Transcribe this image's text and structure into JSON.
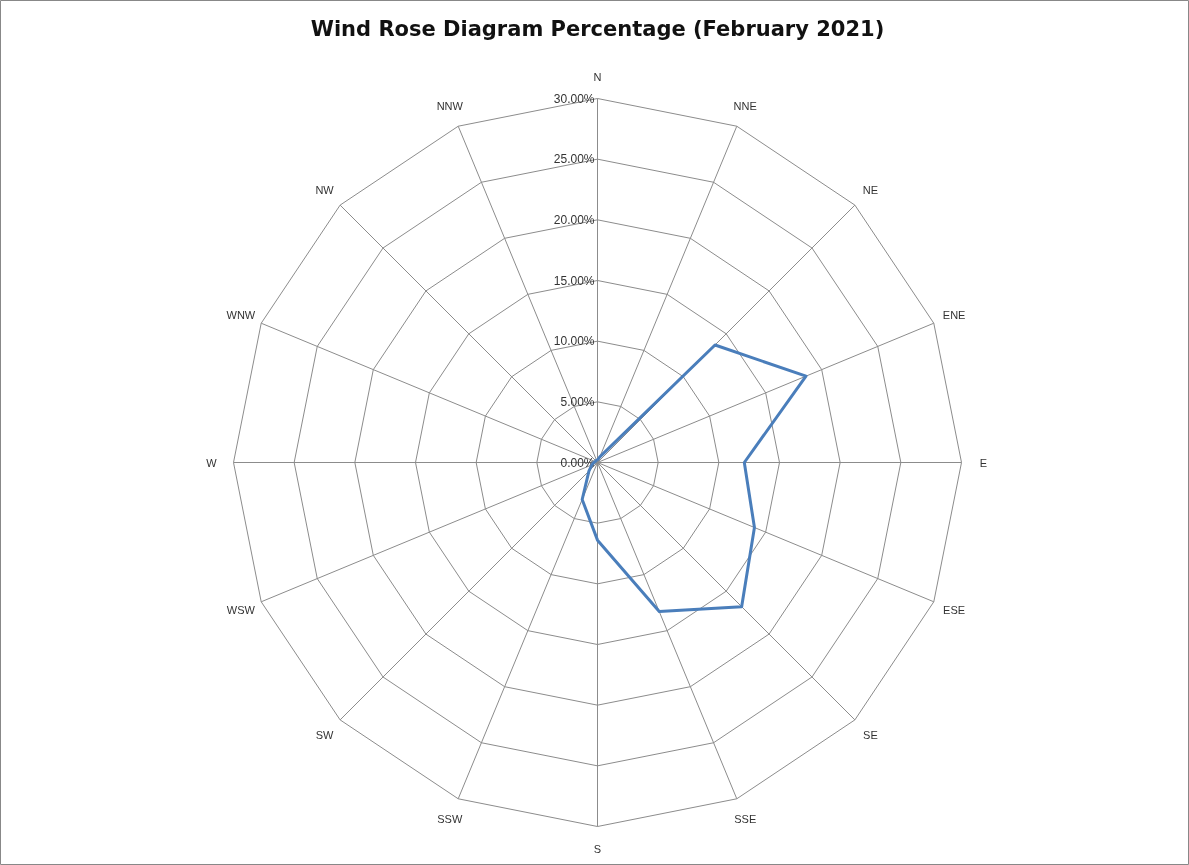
{
  "chart_data": {
    "type": "radar",
    "title": "Wind Rose Diagram Percentage (February 2021)",
    "categories": [
      "N",
      "NNE",
      "NE",
      "ENE",
      "E",
      "ESE",
      "SE",
      "SSE",
      "S",
      "SSW",
      "SW",
      "WSW",
      "W",
      "WNW",
      "NW",
      "NNW"
    ],
    "series": [
      {
        "color": "#4a7ebb",
        "values": [
          0.2,
          0.5,
          13.7,
          18.6,
          12.1,
          14.0,
          16.8,
          13.3,
          6.4,
          3.3,
          1.0,
          0.5,
          0.3,
          0.2,
          0.2,
          0.2
        ]
      }
    ],
    "ylim": [
      0,
      30
    ],
    "yticks": [
      {
        "value": 0,
        "label": "0.00%"
      },
      {
        "value": 5,
        "label": "5.00%"
      },
      {
        "value": 10,
        "label": "10.00%"
      },
      {
        "value": 15,
        "label": "15.00%"
      },
      {
        "value": 20,
        "label": "20.00%"
      },
      {
        "value": 25,
        "label": "25.00%"
      },
      {
        "value": 30,
        "label": "30.00%"
      }
    ],
    "grid": true,
    "line_style": "solid"
  }
}
